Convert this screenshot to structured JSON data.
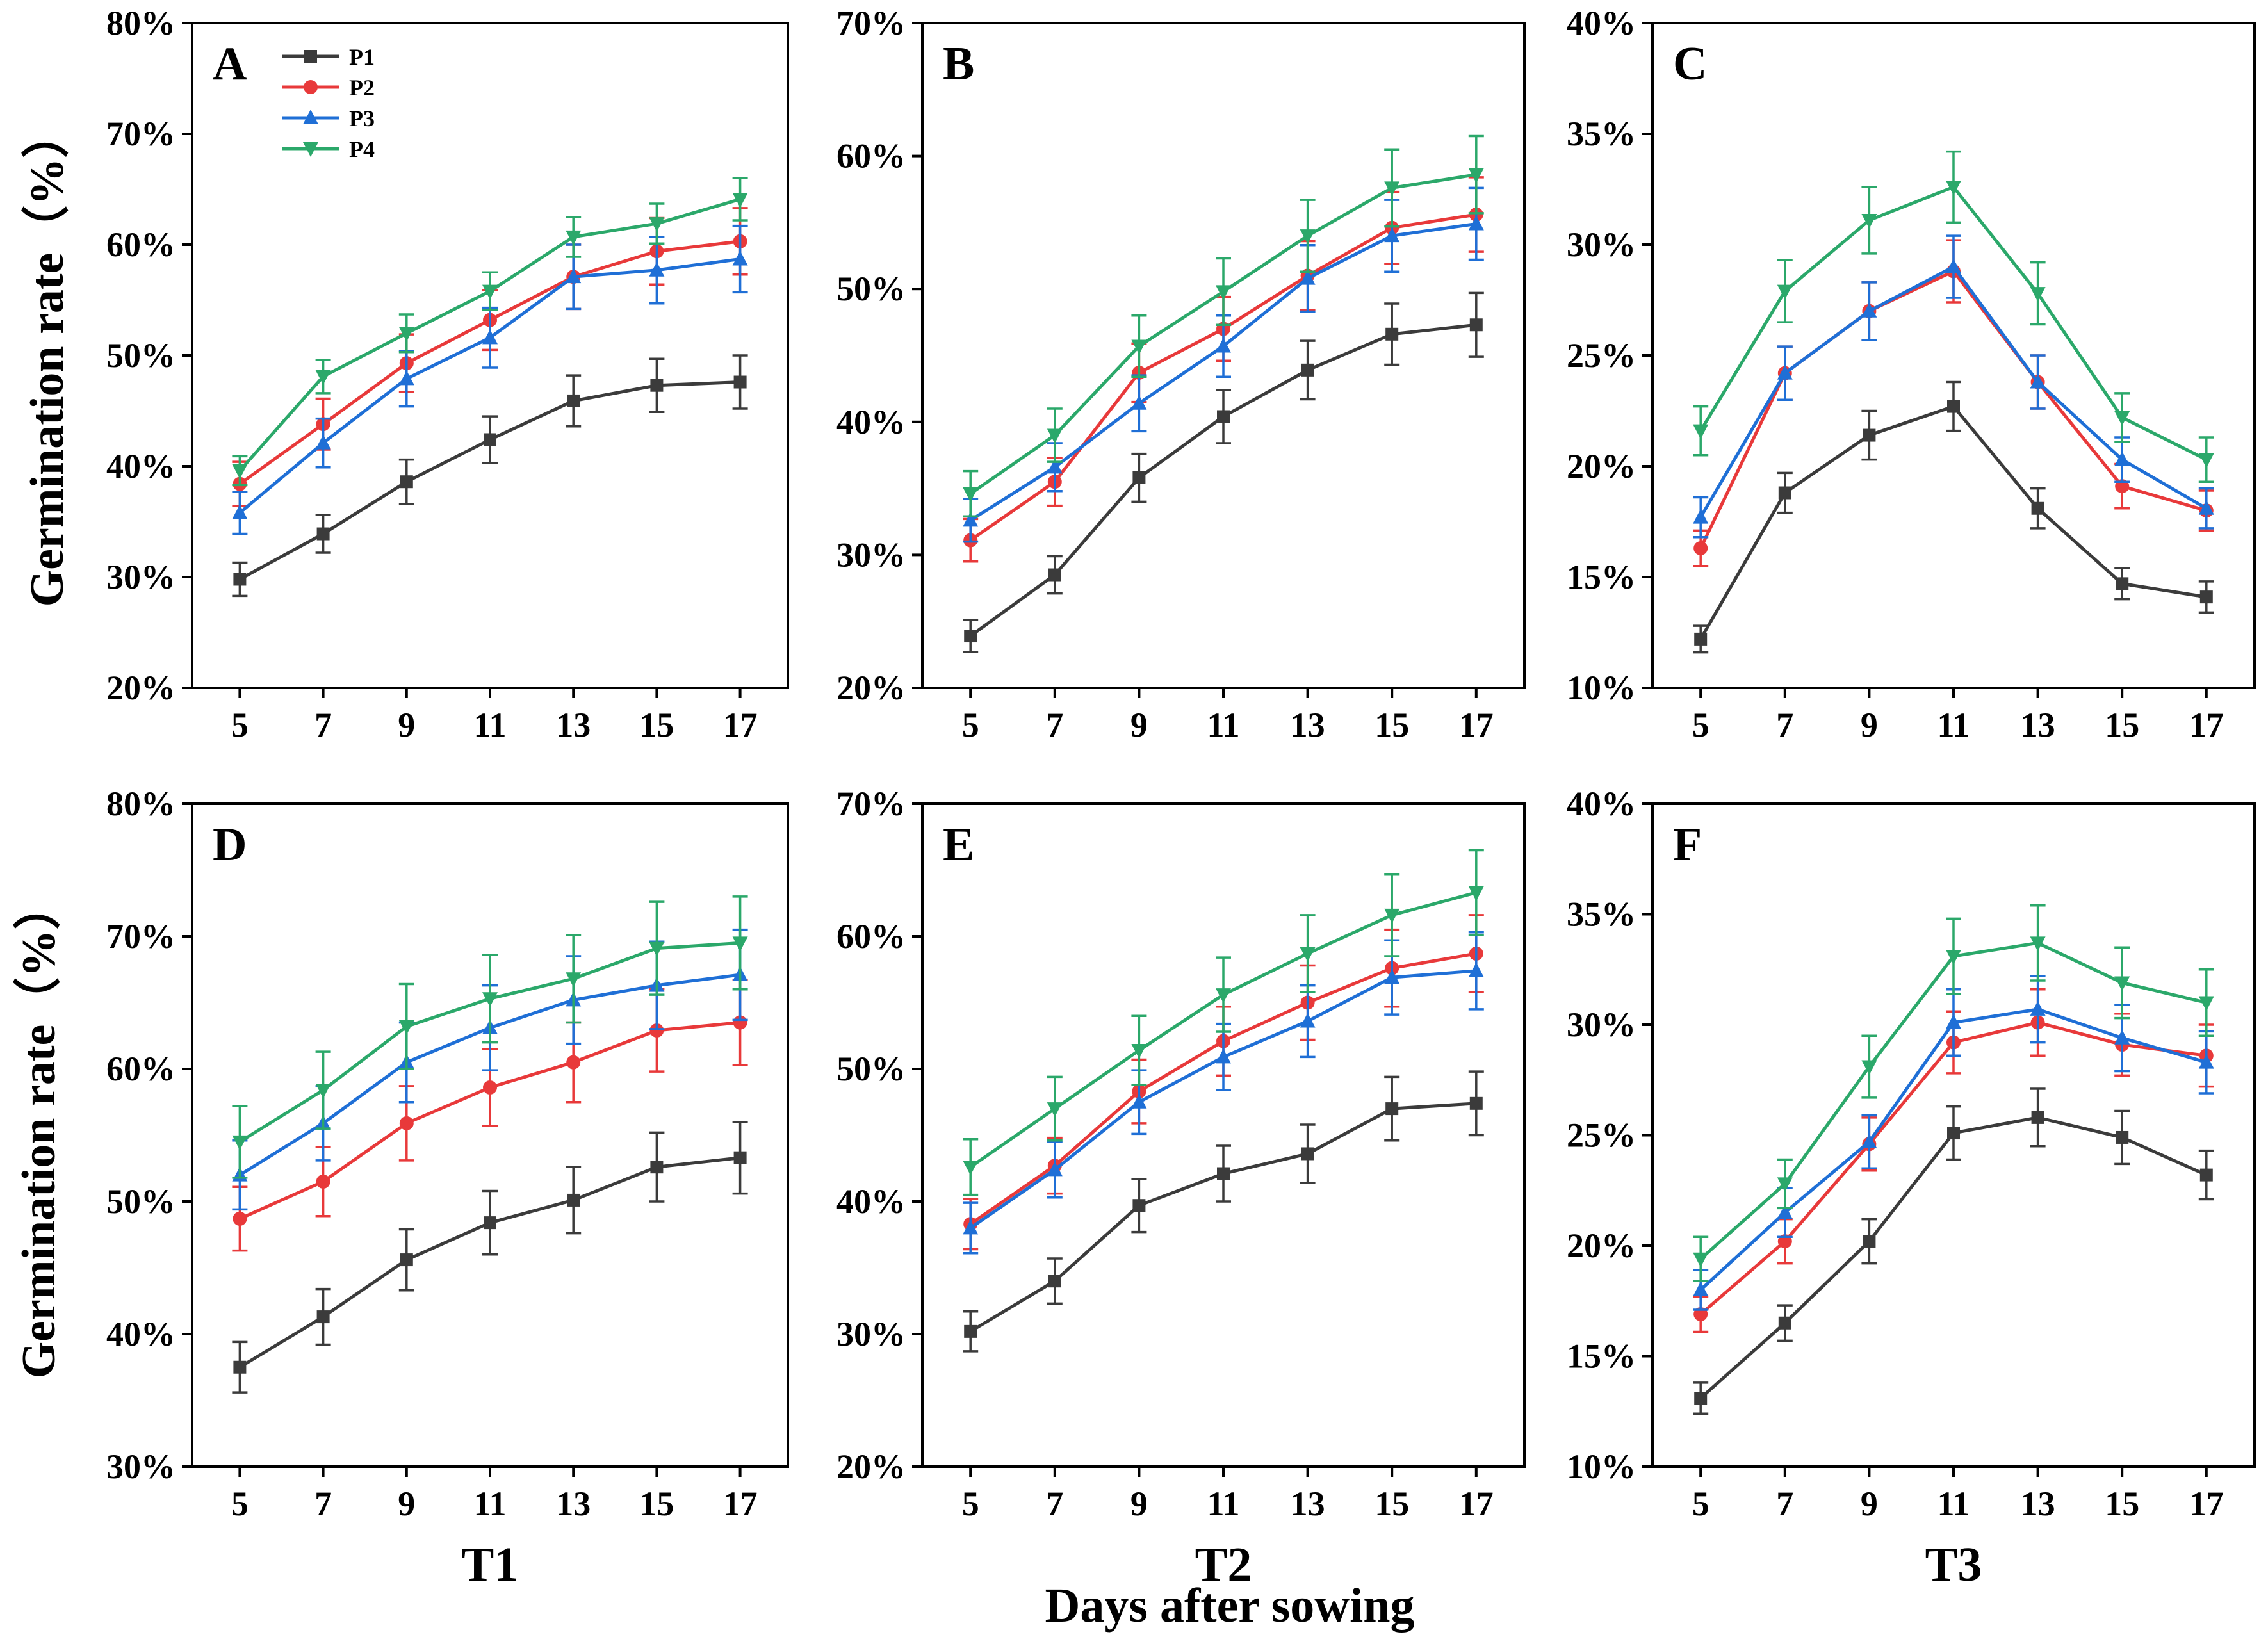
{
  "figure": {
    "x_axis_title": "Days after sowing",
    "y_axis_title": "Germination rate（%）",
    "colors": {
      "P1": "#3b3b3b",
      "P2": "#e8393a",
      "P3": "#1f6fd6",
      "P4": "#2ba86a"
    },
    "legend": [
      "P1",
      "P2",
      "P3",
      "P4"
    ]
  },
  "chart_data": [
    {
      "type": "line",
      "panel": "A",
      "xlabel": "",
      "ylabel": "Germination rate（%）",
      "x": [
        5,
        7,
        9,
        11,
        13,
        15,
        17
      ],
      "ylim": [
        20,
        80
      ],
      "yticks": [
        "20%",
        "30%",
        "40%",
        "50%",
        "60%",
        "70%",
        "80%"
      ],
      "legend_position": "top-left",
      "series": [
        {
          "name": "P1",
          "values": [
            29.8,
            33.9,
            38.6,
            42.4,
            45.9,
            47.3,
            47.6
          ],
          "errors": [
            1.5,
            1.7,
            2.0,
            2.1,
            2.3,
            2.4,
            2.4
          ]
        },
        {
          "name": "P2",
          "values": [
            38.4,
            43.8,
            49.3,
            53.2,
            57.1,
            59.4,
            60.3
          ],
          "errors": [
            2.0,
            2.3,
            2.6,
            2.7,
            2.9,
            3.0,
            3.0
          ]
        },
        {
          "name": "P3",
          "values": [
            35.8,
            42.1,
            47.9,
            51.6,
            57.1,
            57.7,
            58.7
          ],
          "errors": [
            1.9,
            2.2,
            2.5,
            2.7,
            2.9,
            3.0,
            3.0
          ]
        },
        {
          "name": "P4",
          "values": [
            39.6,
            48.1,
            52.0,
            55.8,
            60.7,
            61.9,
            64.1
          ],
          "errors": [
            1.3,
            1.5,
            1.7,
            1.7,
            1.8,
            1.8,
            1.9
          ]
        }
      ]
    },
    {
      "type": "line",
      "panel": "B",
      "xlabel": "",
      "ylabel": "",
      "x": [
        5,
        7,
        9,
        11,
        13,
        15,
        17
      ],
      "ylim": [
        20,
        70
      ],
      "yticks": [
        "20%",
        "30%",
        "40%",
        "50%",
        "60%",
        "70%"
      ],
      "series": [
        {
          "name": "P1",
          "values": [
            23.9,
            28.5,
            35.8,
            40.4,
            43.9,
            46.6,
            47.3
          ],
          "errors": [
            1.2,
            1.4,
            1.8,
            2.0,
            2.2,
            2.3,
            2.4
          ]
        },
        {
          "name": "P2",
          "values": [
            31.1,
            35.5,
            43.7,
            47.0,
            51.0,
            54.6,
            55.6
          ],
          "errors": [
            1.6,
            1.8,
            2.2,
            2.4,
            2.6,
            2.7,
            2.8
          ]
        },
        {
          "name": "P3",
          "values": [
            32.6,
            36.6,
            41.4,
            45.7,
            50.8,
            54.0,
            54.9
          ],
          "errors": [
            1.6,
            1.8,
            2.1,
            2.3,
            2.5,
            2.7,
            2.7
          ]
        },
        {
          "name": "P4",
          "values": [
            34.6,
            39.0,
            45.7,
            49.8,
            54.0,
            57.6,
            58.6
          ],
          "errors": [
            1.7,
            2.0,
            2.3,
            2.5,
            2.7,
            2.9,
            2.9
          ]
        }
      ]
    },
    {
      "type": "line",
      "panel": "C",
      "xlabel": "",
      "ylabel": "",
      "x": [
        5,
        7,
        9,
        11,
        13,
        15,
        17
      ],
      "ylim": [
        10,
        40
      ],
      "yticks": [
        "10%",
        "15%",
        "20%",
        "25%",
        "30%",
        "35%",
        "40%"
      ],
      "series": [
        {
          "name": "P1",
          "values": [
            12.2,
            18.8,
            21.4,
            22.7,
            18.1,
            14.7,
            14.1
          ],
          "errors": [
            0.6,
            0.9,
            1.1,
            1.1,
            0.9,
            0.7,
            0.7
          ]
        },
        {
          "name": "P2",
          "values": [
            16.3,
            24.2,
            27.0,
            28.8,
            23.8,
            19.1,
            18.0
          ],
          "errors": [
            0.8,
            1.2,
            1.3,
            1.4,
            1.2,
            1.0,
            0.9
          ]
        },
        {
          "name": "P3",
          "values": [
            17.7,
            24.2,
            27.0,
            29.0,
            23.8,
            20.3,
            18.1
          ],
          "errors": [
            0.9,
            1.2,
            1.3,
            1.4,
            1.2,
            1.0,
            0.9
          ]
        },
        {
          "name": "P4",
          "values": [
            21.6,
            27.9,
            31.1,
            32.6,
            27.8,
            22.2,
            20.3
          ],
          "errors": [
            1.1,
            1.4,
            1.5,
            1.6,
            1.4,
            1.1,
            1.0
          ]
        }
      ]
    },
    {
      "type": "line",
      "panel": "D",
      "xlabel": "T1",
      "ylabel": "Germination rate（%）",
      "x": [
        5,
        7,
        9,
        11,
        13,
        15,
        17
      ],
      "ylim": [
        30,
        80
      ],
      "yticks": [
        "30%",
        "40%",
        "50%",
        "60%",
        "70%",
        "80%"
      ],
      "series": [
        {
          "name": "P1",
          "values": [
            37.5,
            41.3,
            45.6,
            48.4,
            50.1,
            52.6,
            53.3
          ],
          "errors": [
            1.9,
            2.1,
            2.3,
            2.4,
            2.5,
            2.6,
            2.7
          ]
        },
        {
          "name": "P2",
          "values": [
            48.7,
            51.5,
            55.9,
            58.6,
            60.5,
            62.9,
            63.5
          ],
          "errors": [
            2.4,
            2.6,
            2.8,
            2.9,
            3.0,
            3.1,
            3.2
          ]
        },
        {
          "name": "P3",
          "values": [
            52.0,
            55.9,
            60.5,
            63.1,
            65.2,
            66.3,
            67.1
          ],
          "errors": [
            2.6,
            2.8,
            3.0,
            3.2,
            3.3,
            3.3,
            3.4
          ]
        },
        {
          "name": "P4",
          "values": [
            54.5,
            58.4,
            63.2,
            65.3,
            66.8,
            69.1,
            69.5
          ],
          "errors": [
            2.7,
            2.9,
            3.2,
            3.3,
            3.3,
            3.5,
            3.5
          ]
        }
      ]
    },
    {
      "type": "line",
      "panel": "E",
      "xlabel": "T2",
      "ylabel": "",
      "x": [
        5,
        7,
        9,
        11,
        13,
        15,
        17
      ],
      "ylim": [
        20,
        70
      ],
      "yticks": [
        "20%",
        "30%",
        "40%",
        "50%",
        "60%",
        "70%"
      ],
      "series": [
        {
          "name": "P1",
          "values": [
            30.2,
            34.0,
            39.7,
            42.1,
            43.6,
            47.0,
            47.4
          ],
          "errors": [
            1.5,
            1.7,
            2.0,
            2.1,
            2.2,
            2.4,
            2.4
          ]
        },
        {
          "name": "P2",
          "values": [
            38.3,
            42.7,
            48.3,
            52.1,
            55.0,
            57.6,
            58.7
          ],
          "errors": [
            1.9,
            2.1,
            2.4,
            2.6,
            2.8,
            2.9,
            2.9
          ]
        },
        {
          "name": "P3",
          "values": [
            38.0,
            42.4,
            47.5,
            50.9,
            53.6,
            56.9,
            57.4
          ],
          "errors": [
            1.9,
            2.1,
            2.4,
            2.5,
            2.7,
            2.8,
            2.9
          ]
        },
        {
          "name": "P4",
          "values": [
            42.6,
            47.0,
            51.4,
            55.6,
            58.7,
            61.6,
            63.3
          ],
          "errors": [
            2.1,
            2.4,
            2.6,
            2.8,
            2.9,
            3.1,
            3.2
          ]
        }
      ]
    },
    {
      "type": "line",
      "panel": "F",
      "xlabel": "T3",
      "ylabel": "",
      "x": [
        5,
        7,
        9,
        11,
        13,
        15,
        17
      ],
      "ylim": [
        10,
        40
      ],
      "yticks": [
        "10%",
        "15%",
        "20%",
        "25%",
        "30%",
        "35%",
        "40%"
      ],
      "series": [
        {
          "name": "P1",
          "values": [
            13.1,
            16.5,
            20.2,
            25.1,
            25.8,
            24.9,
            23.2
          ],
          "errors": [
            0.7,
            0.8,
            1.0,
            1.2,
            1.3,
            1.2,
            1.1
          ]
        },
        {
          "name": "P2",
          "values": [
            16.9,
            20.2,
            24.6,
            29.2,
            30.1,
            29.1,
            28.6
          ],
          "errors": [
            0.8,
            1.0,
            1.2,
            1.4,
            1.5,
            1.4,
            1.4
          ]
        },
        {
          "name": "P3",
          "values": [
            18.0,
            21.5,
            24.7,
            30.1,
            30.7,
            29.4,
            28.3
          ],
          "errors": [
            0.9,
            1.1,
            1.2,
            1.5,
            1.5,
            1.5,
            1.4
          ]
        },
        {
          "name": "P4",
          "values": [
            19.4,
            22.8,
            28.1,
            33.1,
            33.7,
            31.9,
            31.0
          ],
          "errors": [
            1.0,
            1.1,
            1.4,
            1.7,
            1.7,
            1.6,
            1.5
          ]
        }
      ]
    }
  ]
}
